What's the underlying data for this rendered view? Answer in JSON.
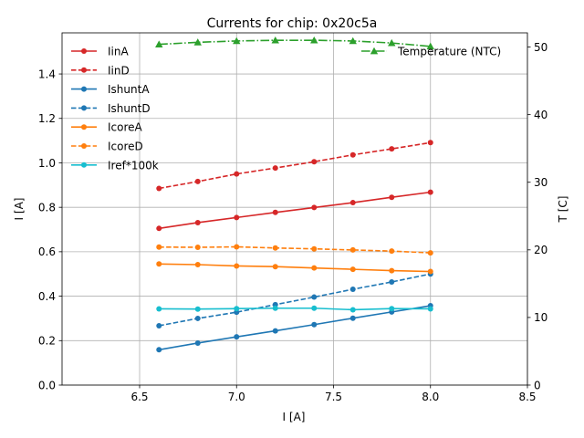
{
  "chart_data": {
    "type": "line",
    "title": "Currents for chip: 0x20c5a",
    "xlabel": "I [A]",
    "ylabel": "I [A]",
    "y2label": "T [C]",
    "xlim": [
      6.1,
      8.5
    ],
    "ylim": [
      0,
      1.585
    ],
    "y2lim": [
      0,
      52.1
    ],
    "xticks": [
      "6.5",
      "7.0",
      "7.5",
      "8.0",
      "8.5"
    ],
    "yticks": [
      "0.0",
      "0.2",
      "0.4",
      "0.6",
      "0.8",
      "1.0",
      "1.2",
      "1.4"
    ],
    "y2ticks": [
      "0",
      "10",
      "20",
      "30",
      "40",
      "50"
    ],
    "grid": true,
    "legend_position": "top-left",
    "x": [
      6.6,
      6.8,
      7.0,
      7.2,
      7.4,
      7.6,
      7.8,
      8.0
    ],
    "series": [
      {
        "name": "IinA",
        "color": "#d62728",
        "dash": "solid",
        "marker": "circle",
        "axis": "left",
        "values": [
          0.705,
          0.731,
          0.754,
          0.777,
          0.799,
          0.821,
          0.845,
          0.868
        ]
      },
      {
        "name": "IinD",
        "color": "#d62728",
        "dash": "dashed",
        "marker": "circle",
        "axis": "left",
        "values": [
          0.885,
          0.916,
          0.95,
          0.977,
          1.005,
          1.036,
          1.063,
          1.091
        ]
      },
      {
        "name": "IshuntA",
        "color": "#1f77b4",
        "dash": "solid",
        "marker": "circle",
        "axis": "left",
        "values": [
          0.159,
          0.189,
          0.217,
          0.244,
          0.272,
          0.301,
          0.329,
          0.357
        ]
      },
      {
        "name": "IshuntD",
        "color": "#1f77b4",
        "dash": "dashed",
        "marker": "circle",
        "axis": "left",
        "values": [
          0.267,
          0.3,
          0.328,
          0.362,
          0.396,
          0.431,
          0.464,
          0.5
        ]
      },
      {
        "name": "IcoreA",
        "color": "#ff7f0e",
        "dash": "solid",
        "marker": "circle",
        "axis": "left",
        "values": [
          0.545,
          0.542,
          0.536,
          0.533,
          0.527,
          0.521,
          0.515,
          0.511
        ]
      },
      {
        "name": "IcoreD",
        "color": "#ff7f0e",
        "dash": "dashed",
        "marker": "circle",
        "axis": "left",
        "values": [
          0.621,
          0.62,
          0.622,
          0.617,
          0.613,
          0.608,
          0.603,
          0.595
        ]
      },
      {
        "name": "Iref*100k",
        "color": "#17becf",
        "dash": "solid",
        "marker": "circle",
        "axis": "left",
        "values": [
          0.343,
          0.342,
          0.344,
          0.346,
          0.346,
          0.339,
          0.344,
          0.343
        ]
      },
      {
        "name": "Temperature (NTC)",
        "color": "#2ca02c",
        "dash": "dashdot",
        "marker": "triangle",
        "axis": "right",
        "values": [
          50.4,
          50.7,
          50.9,
          51.0,
          51.0,
          50.9,
          50.6,
          50.1
        ]
      }
    ]
  }
}
